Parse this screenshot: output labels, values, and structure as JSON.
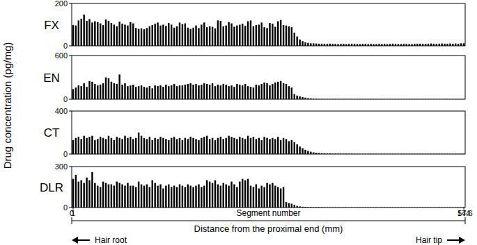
{
  "chart_data": [
    {
      "type": "bar",
      "title": "FX",
      "ylabel": "Drug concentration (pg/mg)",
      "color": "#000000",
      "tick_labels": "y",
      "xlim": [
        0.5,
        144.5
      ],
      "ylim": [
        0,
        200
      ],
      "yticks": [
        0,
        200
      ],
      "x": [
        1,
        2,
        3,
        4,
        5,
        6,
        7,
        8,
        9,
        10,
        11,
        12,
        13,
        14,
        15,
        16,
        17,
        18,
        19,
        20,
        21,
        22,
        23,
        24,
        25,
        26,
        27,
        28,
        29,
        30,
        31,
        32,
        33,
        34,
        35,
        36,
        37,
        38,
        39,
        40,
        41,
        42,
        43,
        44,
        45,
        46,
        47,
        48,
        49,
        50,
        51,
        52,
        53,
        54,
        55,
        56,
        57,
        58,
        59,
        60,
        61,
        62,
        63,
        64,
        65,
        66,
        67,
        68,
        69,
        70,
        71,
        72,
        73,
        74,
        75,
        76,
        77,
        78,
        79,
        80,
        81,
        82,
        83,
        84,
        85,
        86,
        87,
        88,
        89,
        90,
        91,
        92,
        93,
        94,
        95,
        96,
        97,
        98,
        99,
        100,
        101,
        102,
        103,
        104,
        105,
        106,
        107,
        108,
        109,
        110,
        111,
        112,
        113,
        114,
        115,
        116,
        117,
        118,
        119,
        120,
        121,
        122,
        123,
        124,
        125,
        126,
        127,
        128,
        129,
        130,
        131,
        132,
        133,
        134,
        135,
        136,
        137,
        138,
        139,
        140,
        141,
        142,
        143,
        144
      ],
      "values": [
        98,
        96,
        120,
        128,
        148,
        118,
        126,
        110,
        116,
        112,
        106,
        98,
        124,
        118,
        108,
        100,
        92,
        114,
        104,
        100,
        96,
        112,
        106,
        84,
        80,
        82,
        78,
        84,
        92,
        98,
        104,
        110,
        96,
        100,
        94,
        108,
        100,
        86,
        92,
        110,
        102,
        106,
        86,
        80,
        86,
        96,
        84,
        100,
        110,
        88,
        92,
        90,
        82,
        120,
        118,
        92,
        96,
        112,
        106,
        90,
        96,
        100,
        104,
        94,
        116,
        120,
        92,
        98,
        100,
        110,
        88,
        84,
        108,
        104,
        90,
        116,
        122,
        98,
        96,
        92,
        88,
        62,
        44,
        30,
        22,
        16,
        14,
        12,
        12,
        11,
        10,
        10,
        9,
        9,
        10,
        9,
        9,
        8,
        9,
        9,
        8,
        9,
        10,
        9,
        8,
        8,
        9,
        9,
        8,
        9,
        8,
        8,
        9,
        8,
        9,
        8,
        9,
        10,
        9,
        8,
        8,
        9,
        9,
        8,
        8,
        9,
        10,
        10,
        9,
        9,
        10,
        11,
        10,
        9,
        10,
        11,
        10,
        10,
        11,
        10,
        11,
        10,
        12,
        12
      ]
    },
    {
      "type": "bar",
      "title": "EN",
      "color": "#000000",
      "tick_labels": "y",
      "xlim": [
        0.5,
        144.5
      ],
      "ylim": [
        0,
        600
      ],
      "yticks": [
        0,
        600
      ],
      "x": [
        1,
        2,
        3,
        4,
        5,
        6,
        7,
        8,
        9,
        10,
        11,
        12,
        13,
        14,
        15,
        16,
        17,
        18,
        19,
        20,
        21,
        22,
        23,
        24,
        25,
        26,
        27,
        28,
        29,
        30,
        31,
        32,
        33,
        34,
        35,
        36,
        37,
        38,
        39,
        40,
        41,
        42,
        43,
        44,
        45,
        46,
        47,
        48,
        49,
        50,
        51,
        52,
        53,
        54,
        55,
        56,
        57,
        58,
        59,
        60,
        61,
        62,
        63,
        64,
        65,
        66,
        67,
        68,
        69,
        70,
        71,
        72,
        73,
        74,
        75,
        76,
        77,
        78,
        79,
        80,
        81,
        82,
        83,
        84,
        85,
        86,
        87,
        88,
        89,
        90,
        91,
        92,
        93,
        94,
        95,
        96,
        97,
        98,
        99,
        100,
        101,
        102,
        103,
        104,
        105,
        106,
        107,
        108,
        109,
        110,
        111,
        112,
        113,
        114,
        115,
        116,
        117,
        118,
        119,
        120,
        121,
        122,
        123,
        124,
        125,
        126,
        127,
        128,
        129,
        130,
        131,
        132,
        133,
        134,
        135,
        136,
        137,
        138,
        139,
        140,
        141,
        142,
        143,
        144
      ],
      "values": [
        140,
        160,
        190,
        180,
        220,
        170,
        250,
        240,
        210,
        190,
        200,
        220,
        300,
        290,
        240,
        220,
        210,
        340,
        200,
        220,
        180,
        190,
        200,
        170,
        180,
        190,
        170,
        160,
        180,
        150,
        190,
        180,
        190,
        170,
        200,
        180,
        190,
        210,
        180,
        190,
        190,
        200,
        210,
        220,
        200,
        210,
        190,
        200,
        220,
        210,
        200,
        220,
        180,
        200,
        190,
        210,
        200,
        180,
        190,
        170,
        210,
        200,
        190,
        210,
        180,
        170,
        160,
        200,
        190,
        210,
        230,
        220,
        190,
        210,
        230,
        240,
        250,
        220,
        210,
        180,
        160,
        70,
        50,
        40,
        30,
        22,
        15,
        12,
        10,
        8,
        6,
        5,
        5,
        5,
        4,
        4,
        5,
        4,
        4,
        4,
        4,
        4,
        4,
        4,
        4,
        4,
        4,
        4,
        4,
        4,
        4,
        4,
        4,
        4,
        4,
        4,
        4,
        4,
        4,
        4,
        4,
        4,
        4,
        4,
        4,
        4,
        4,
        4,
        4,
        4,
        4,
        4,
        4,
        4,
        4,
        4,
        4,
        4,
        4,
        4,
        4,
        4,
        4,
        4
      ]
    },
    {
      "type": "bar",
      "title": "CT",
      "color": "#000000",
      "tick_labels": "y",
      "xlim": [
        0.5,
        144.5
      ],
      "ylim": [
        0,
        400
      ],
      "yticks": [
        0,
        400
      ],
      "x": [
        1,
        2,
        3,
        4,
        5,
        6,
        7,
        8,
        9,
        10,
        11,
        12,
        13,
        14,
        15,
        16,
        17,
        18,
        19,
        20,
        21,
        22,
        23,
        24,
        25,
        26,
        27,
        28,
        29,
        30,
        31,
        32,
        33,
        34,
        35,
        36,
        37,
        38,
        39,
        40,
        41,
        42,
        43,
        44,
        45,
        46,
        47,
        48,
        49,
        50,
        51,
        52,
        53,
        54,
        55,
        56,
        57,
        58,
        59,
        60,
        61,
        62,
        63,
        64,
        65,
        66,
        67,
        68,
        69,
        70,
        71,
        72,
        73,
        74,
        75,
        76,
        77,
        78,
        79,
        80,
        81,
        82,
        83,
        84,
        85,
        86,
        87,
        88,
        89,
        90,
        91,
        92,
        93,
        94,
        95,
        96,
        97,
        98,
        99,
        100,
        101,
        102,
        103,
        104,
        105,
        106,
        107,
        108,
        109,
        110,
        111,
        112,
        113,
        114,
        115,
        116,
        117,
        118,
        119,
        120,
        121,
        122,
        123,
        124,
        125,
        126,
        127,
        128,
        129,
        130,
        131,
        132,
        133,
        134,
        135,
        136,
        137,
        138,
        139,
        140,
        141,
        142,
        143,
        144
      ],
      "values": [
        130,
        150,
        160,
        140,
        170,
        150,
        160,
        170,
        130,
        140,
        160,
        150,
        140,
        170,
        150,
        130,
        160,
        150,
        140,
        170,
        150,
        160,
        140,
        150,
        200,
        170,
        150,
        140,
        160,
        130,
        150,
        140,
        160,
        150,
        140,
        130,
        150,
        160,
        140,
        150,
        130,
        150,
        140,
        160,
        150,
        140,
        130,
        150,
        160,
        170,
        140,
        150,
        130,
        150,
        160,
        140,
        150,
        170,
        160,
        150,
        140,
        160,
        150,
        140,
        170,
        150,
        160,
        140,
        150,
        130,
        160,
        150,
        140,
        150,
        140,
        160,
        130,
        150,
        140,
        120,
        130,
        110,
        90,
        70,
        55,
        40,
        30,
        22,
        16,
        12,
        10,
        8,
        7,
        6,
        6,
        5,
        5,
        5,
        4,
        4,
        4,
        4,
        4,
        3,
        3,
        3,
        3,
        3,
        3,
        3,
        3,
        3,
        3,
        3,
        3,
        3,
        3,
        3,
        3,
        3,
        3,
        3,
        3,
        3,
        3,
        3,
        3,
        3,
        3,
        3,
        3,
        3,
        3,
        3,
        3,
        3,
        3,
        3,
        3,
        3,
        3,
        3,
        3,
        3
      ]
    },
    {
      "type": "bar",
      "title": "DLR",
      "xlabel": "Segment number",
      "color": "#000000",
      "tick_labels": true,
      "xlim": [
        0.5,
        144.5
      ],
      "xticks": [
        1,
        144
      ],
      "ylim": [
        0,
        300
      ],
      "yticks": [
        0,
        300
      ],
      "x2label": "Distance from the proximal end (mm)",
      "x2lim": [
        0,
        57.6
      ],
      "x2ticks": [
        0,
        57.6
      ],
      "annotations": [
        "Hair root",
        "Hair tip"
      ],
      "x": [
        1,
        2,
        3,
        4,
        5,
        6,
        7,
        8,
        9,
        10,
        11,
        12,
        13,
        14,
        15,
        16,
        17,
        18,
        19,
        20,
        21,
        22,
        23,
        24,
        25,
        26,
        27,
        28,
        29,
        30,
        31,
        32,
        33,
        34,
        35,
        36,
        37,
        38,
        39,
        40,
        41,
        42,
        43,
        44,
        45,
        46,
        47,
        48,
        49,
        50,
        51,
        52,
        53,
        54,
        55,
        56,
        57,
        58,
        59,
        60,
        61,
        62,
        63,
        64,
        65,
        66,
        67,
        68,
        69,
        70,
        71,
        72,
        73,
        74,
        75,
        76,
        77,
        78,
        79,
        80,
        81,
        82,
        83,
        84,
        85,
        86,
        87,
        88,
        89,
        90,
        91,
        92,
        93,
        94,
        95,
        96,
        97,
        98,
        99,
        100,
        101,
        102,
        103,
        104,
        105,
        106,
        107,
        108,
        109,
        110,
        111,
        112,
        113,
        114,
        115,
        116,
        117,
        118,
        119,
        120,
        121,
        122,
        123,
        124,
        125,
        126,
        127,
        128,
        129,
        130,
        131,
        132,
        133,
        134,
        135,
        136,
        137,
        138,
        139,
        140,
        141,
        142,
        143,
        144
      ],
      "values": [
        210,
        240,
        190,
        200,
        180,
        220,
        200,
        260,
        180,
        160,
        150,
        190,
        180,
        170,
        170,
        160,
        190,
        180,
        170,
        160,
        180,
        160,
        160,
        150,
        190,
        170,
        160,
        170,
        150,
        200,
        180,
        160,
        170,
        140,
        160,
        170,
        150,
        160,
        150,
        170,
        160,
        150,
        170,
        160,
        150,
        160,
        170,
        150,
        160,
        200,
        190,
        180,
        200,
        170,
        160,
        180,
        170,
        160,
        190,
        170,
        150,
        190,
        210,
        200,
        210,
        160,
        150,
        170,
        140,
        160,
        150,
        180,
        170,
        180,
        160,
        150,
        140,
        150,
        40,
        32,
        28,
        20,
        12,
        8,
        6,
        5,
        4,
        4,
        3,
        3,
        3,
        3,
        2,
        2,
        2,
        2,
        2,
        2,
        2,
        2,
        2,
        2,
        2,
        2,
        2,
        2,
        2,
        2,
        2,
        2,
        2,
        2,
        2,
        2,
        2,
        2,
        2,
        2,
        2,
        2,
        2,
        2,
        2,
        2,
        2,
        2,
        2,
        2,
        2,
        2,
        2,
        2,
        2,
        2,
        2,
        2,
        2,
        2,
        2,
        2,
        2,
        2,
        2,
        2
      ]
    }
  ]
}
